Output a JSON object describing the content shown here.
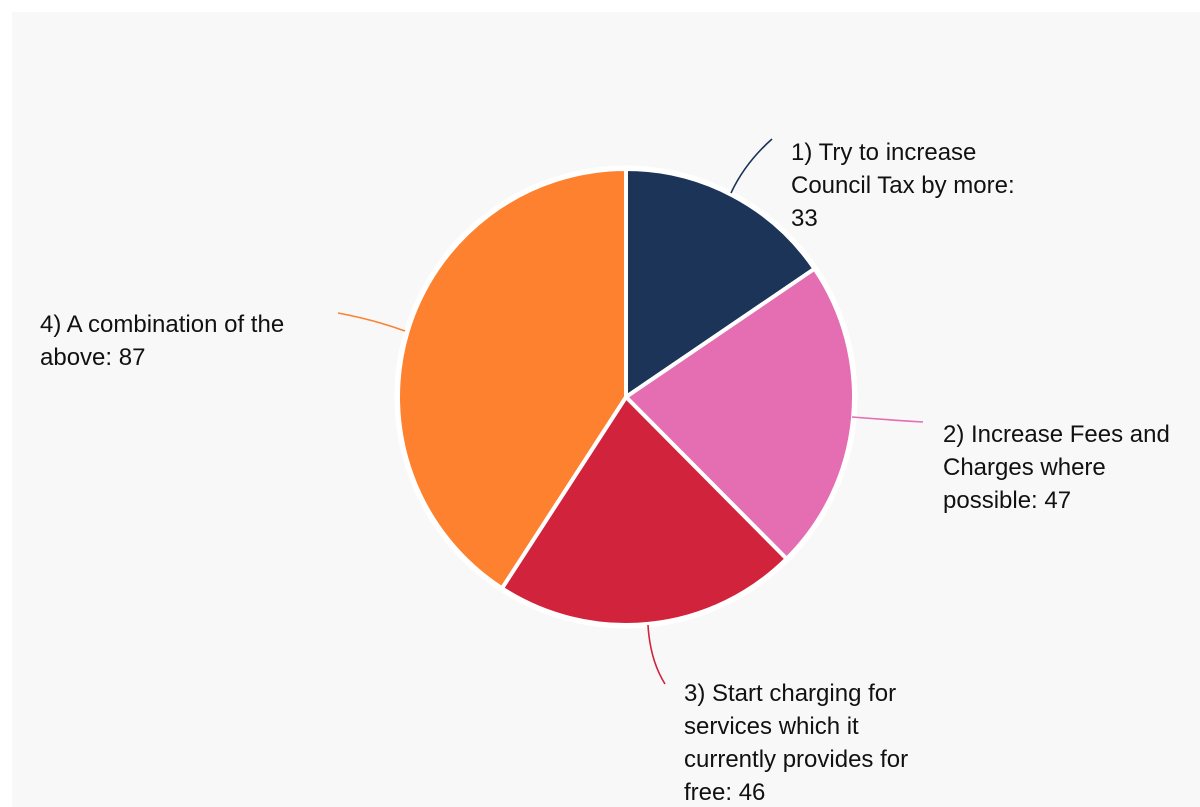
{
  "chart_data": {
    "type": "pie",
    "title": "",
    "categories": [
      "1) Try to increase Council Tax by more",
      "2) Increase Fees and Charges where possible",
      "3) Start charging for services which it currently provides for free",
      "4) A combination of the above"
    ],
    "values": [
      33,
      47,
      46,
      87
    ],
    "colors": [
      "#1b3458",
      "#e56db1",
      "#d2233c",
      "#fd812f"
    ],
    "labels": [
      {
        "lines": [
          "1) Try to increase",
          "Council Tax by more:",
          "33"
        ]
      },
      {
        "lines": [
          "2) Increase Fees and",
          "Charges where",
          "possible: 47"
        ]
      },
      {
        "lines": [
          "3) Start charging for",
          "services which it",
          "currently provides for",
          "free: 46"
        ]
      },
      {
        "lines": [
          "4) A combination of the",
          "above: 87"
        ]
      }
    ],
    "legend": "none",
    "start_angle": "top, clockwise"
  }
}
